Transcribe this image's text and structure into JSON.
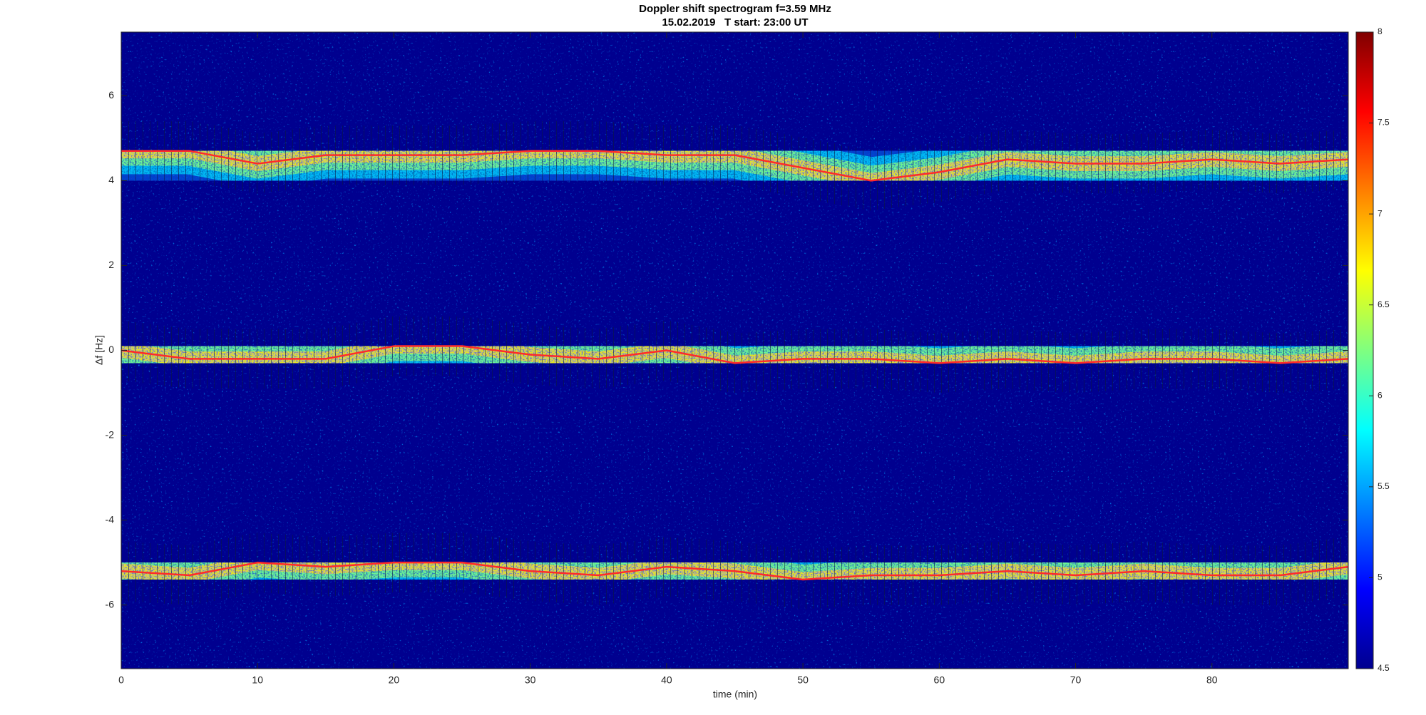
{
  "chart_data": {
    "type": "spectrogram",
    "title": "Doppler shift spectrogram f=3.59 MHz",
    "subtitle": "15.02.2019   T start: 23:00 UT",
    "x_label": "time (min)",
    "y_label": "Δf [Hz]",
    "x": [
      0,
      5,
      10,
      15,
      20,
      25,
      30,
      35,
      40,
      45,
      50,
      55,
      60,
      65,
      70,
      75,
      80,
      85,
      90
    ],
    "series": [
      {
        "color": "#ff2a2a",
        "values": [
          4.7,
          4.7,
          4.4,
          4.6,
          4.6,
          4.6,
          4.7,
          4.7,
          4.6,
          4.6,
          4.3,
          4.0,
          4.2,
          4.5,
          4.4,
          4.4,
          4.5,
          4.4,
          4.5
        ]
      },
      {
        "color": "#ff2a2a",
        "values": [
          0.0,
          -0.2,
          -0.2,
          -0.2,
          0.1,
          0.1,
          -0.1,
          -0.2,
          0.0,
          -0.3,
          -0.2,
          -0.2,
          -0.3,
          -0.2,
          -0.3,
          -0.2,
          -0.2,
          -0.3,
          -0.2
        ]
      },
      {
        "color": "#ff2a2a",
        "values": [
          -5.2,
          -5.3,
          -5.0,
          -5.1,
          -5.0,
          -5.0,
          -5.2,
          -5.3,
          -5.1,
          -5.2,
          -5.4,
          -5.3,
          -5.3,
          -5.2,
          -5.3,
          -5.2,
          -5.3,
          -5.3,
          -5.1
        ]
      }
    ],
    "xlim": [
      0,
      90
    ],
    "xticks": [
      0,
      10,
      20,
      30,
      40,
      50,
      60,
      70,
      80
    ],
    "ylim": [
      -7.5,
      7.5
    ],
    "yticks": [
      -6,
      -4,
      -2,
      0,
      2,
      4,
      6
    ],
    "colormap": "jet",
    "clim": [
      4.5,
      8
    ],
    "cticks": [
      4.5,
      5,
      5.5,
      6,
      6.5,
      7,
      7.5,
      8
    ]
  }
}
